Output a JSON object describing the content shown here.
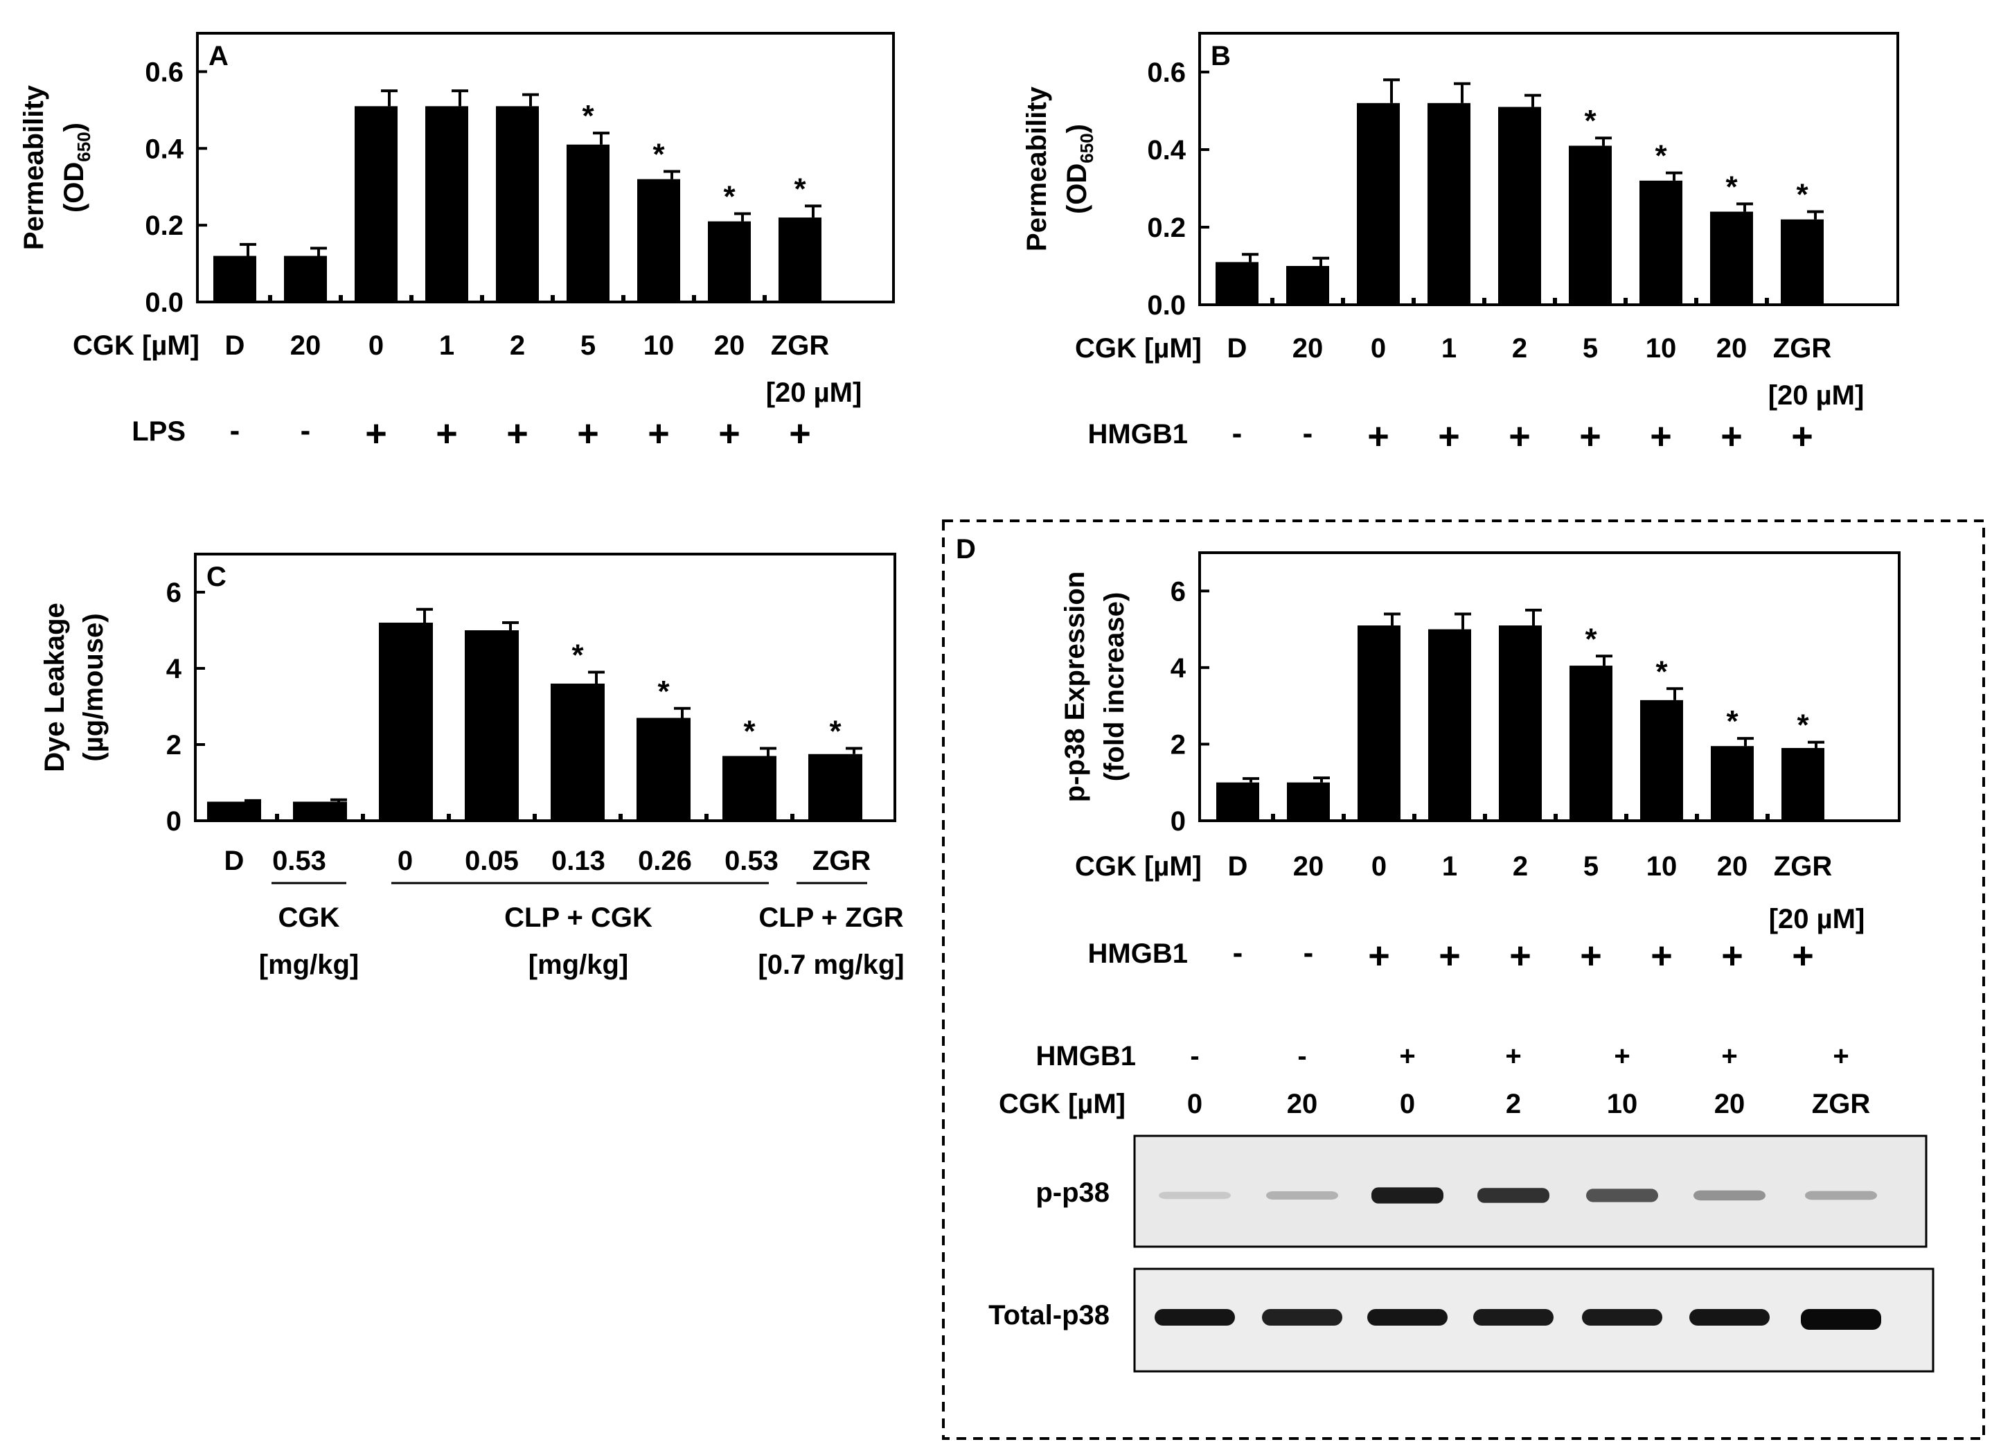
{
  "chart_data": [
    {
      "type": "bar",
      "panel": "A",
      "ylabel": "Permeability",
      "ylabel_line2": "(OD",
      "ylabel_sub": "650",
      "ylabel_close": ")",
      "ylim": [
        0,
        0.7
      ],
      "yticks": [
        "0.0",
        "0.2",
        "0.4",
        "0.6"
      ],
      "ytick_values": [
        0,
        0.2,
        0.4,
        0.6
      ],
      "row1_title": "CGK [µM]",
      "categories": [
        "D",
        "20",
        "0",
        "1",
        "2",
        "5",
        "10",
        "20",
        "ZGR"
      ],
      "extra_label": "[20 µM]",
      "row2_title": "LPS",
      "row2": [
        "-",
        "-",
        "+",
        "+",
        "+",
        "+",
        "+",
        "+",
        "+"
      ],
      "values": [
        0.12,
        0.12,
        0.51,
        0.51,
        0.51,
        0.41,
        0.32,
        0.21,
        0.22
      ],
      "errors": [
        0.03,
        0.02,
        0.04,
        0.04,
        0.03,
        0.03,
        0.02,
        0.02,
        0.03
      ],
      "significant": [
        false,
        false,
        false,
        false,
        false,
        true,
        true,
        true,
        true
      ],
      "star": "*"
    },
    {
      "type": "bar",
      "panel": "B",
      "ylabel": "Permeability",
      "ylabel_line2": "(OD",
      "ylabel_sub": "650",
      "ylabel_close": ")",
      "ylim": [
        0,
        0.7
      ],
      "yticks": [
        "0.0",
        "0.2",
        "0.4",
        "0.6"
      ],
      "ytick_values": [
        0,
        0.2,
        0.4,
        0.6
      ],
      "row1_title": "CGK [µM]",
      "categories": [
        "D",
        "20",
        "0",
        "1",
        "2",
        "5",
        "10",
        "20",
        "ZGR"
      ],
      "extra_label": "[20 µM]",
      "row2_title": "HMGB1",
      "row2": [
        "-",
        "-",
        "+",
        "+",
        "+",
        "+",
        "+",
        "+",
        "+"
      ],
      "values": [
        0.11,
        0.1,
        0.52,
        0.52,
        0.51,
        0.41,
        0.32,
        0.24,
        0.22
      ],
      "errors": [
        0.02,
        0.02,
        0.06,
        0.05,
        0.03,
        0.02,
        0.02,
        0.02,
        0.02
      ],
      "significant": [
        false,
        false,
        false,
        false,
        false,
        true,
        true,
        true,
        true
      ],
      "star": "*"
    },
    {
      "type": "bar",
      "panel": "C",
      "ylabel": "Dye Leakage",
      "ylabel_line2": "(µg/mouse)",
      "ylim": [
        0,
        7
      ],
      "yticks": [
        "0",
        "2",
        "4",
        "6"
      ],
      "ytick_values": [
        0,
        2,
        4,
        6
      ],
      "categories": [
        "D",
        "0.53",
        "0",
        "0.05",
        "0.13",
        "0.26",
        "0.53",
        "ZGR"
      ],
      "group_labels": [
        {
          "line1": "CGK",
          "line2": "[mg/kg]"
        },
        {
          "line1": "CLP + CGK",
          "line2": "[mg/kg]"
        },
        {
          "line1": "CLP + ZGR",
          "line2": "[0.7 mg/kg]"
        }
      ],
      "values": [
        0.5,
        0.5,
        5.2,
        5.0,
        3.6,
        2.7,
        1.7,
        1.75
      ],
      "errors": [
        0.03,
        0.05,
        0.35,
        0.2,
        0.3,
        0.25,
        0.2,
        0.15
      ],
      "significant": [
        false,
        false,
        false,
        false,
        true,
        true,
        true,
        true
      ],
      "star": "*"
    },
    {
      "type": "bar",
      "panel": "D",
      "ylabel": "p-p38 Expression",
      "ylabel_line2": "(fold increase)",
      "ylim": [
        0,
        7
      ],
      "yticks": [
        "0",
        "2",
        "4",
        "6"
      ],
      "ytick_values": [
        0,
        2,
        4,
        6
      ],
      "row1_title": "CGK [µM]",
      "categories": [
        "D",
        "20",
        "0",
        "1",
        "2",
        "5",
        "10",
        "20",
        "ZGR"
      ],
      "extra_label": "[20 µM]",
      "row2_title": "HMGB1",
      "row2": [
        "-",
        "-",
        "+",
        "+",
        "+",
        "+",
        "+",
        "+",
        "+"
      ],
      "values": [
        1.0,
        1.0,
        5.1,
        5.0,
        5.1,
        4.05,
        3.15,
        1.95,
        1.9
      ],
      "errors": [
        0.1,
        0.12,
        0.3,
        0.4,
        0.4,
        0.25,
        0.3,
        0.2,
        0.15
      ],
      "significant": [
        false,
        false,
        false,
        false,
        false,
        true,
        true,
        true,
        true
      ],
      "star": "*"
    }
  ],
  "blot": {
    "hmgb1_title": "HMGB1",
    "hmgb1": [
      "-",
      "-",
      "+",
      "+",
      "+",
      "+",
      "+"
    ],
    "cgk_title": "CGK [µM]",
    "cgk": [
      "0",
      "20",
      "0",
      "2",
      "10",
      "20",
      "ZGR"
    ],
    "row1_label": "p-p38",
    "row2_label": "Total-p38",
    "p38_intensity": [
      0.15,
      0.25,
      0.95,
      0.85,
      0.7,
      0.4,
      0.3
    ],
    "total_intensity": [
      0.95,
      0.9,
      0.95,
      0.93,
      0.93,
      0.95,
      1.0
    ]
  }
}
